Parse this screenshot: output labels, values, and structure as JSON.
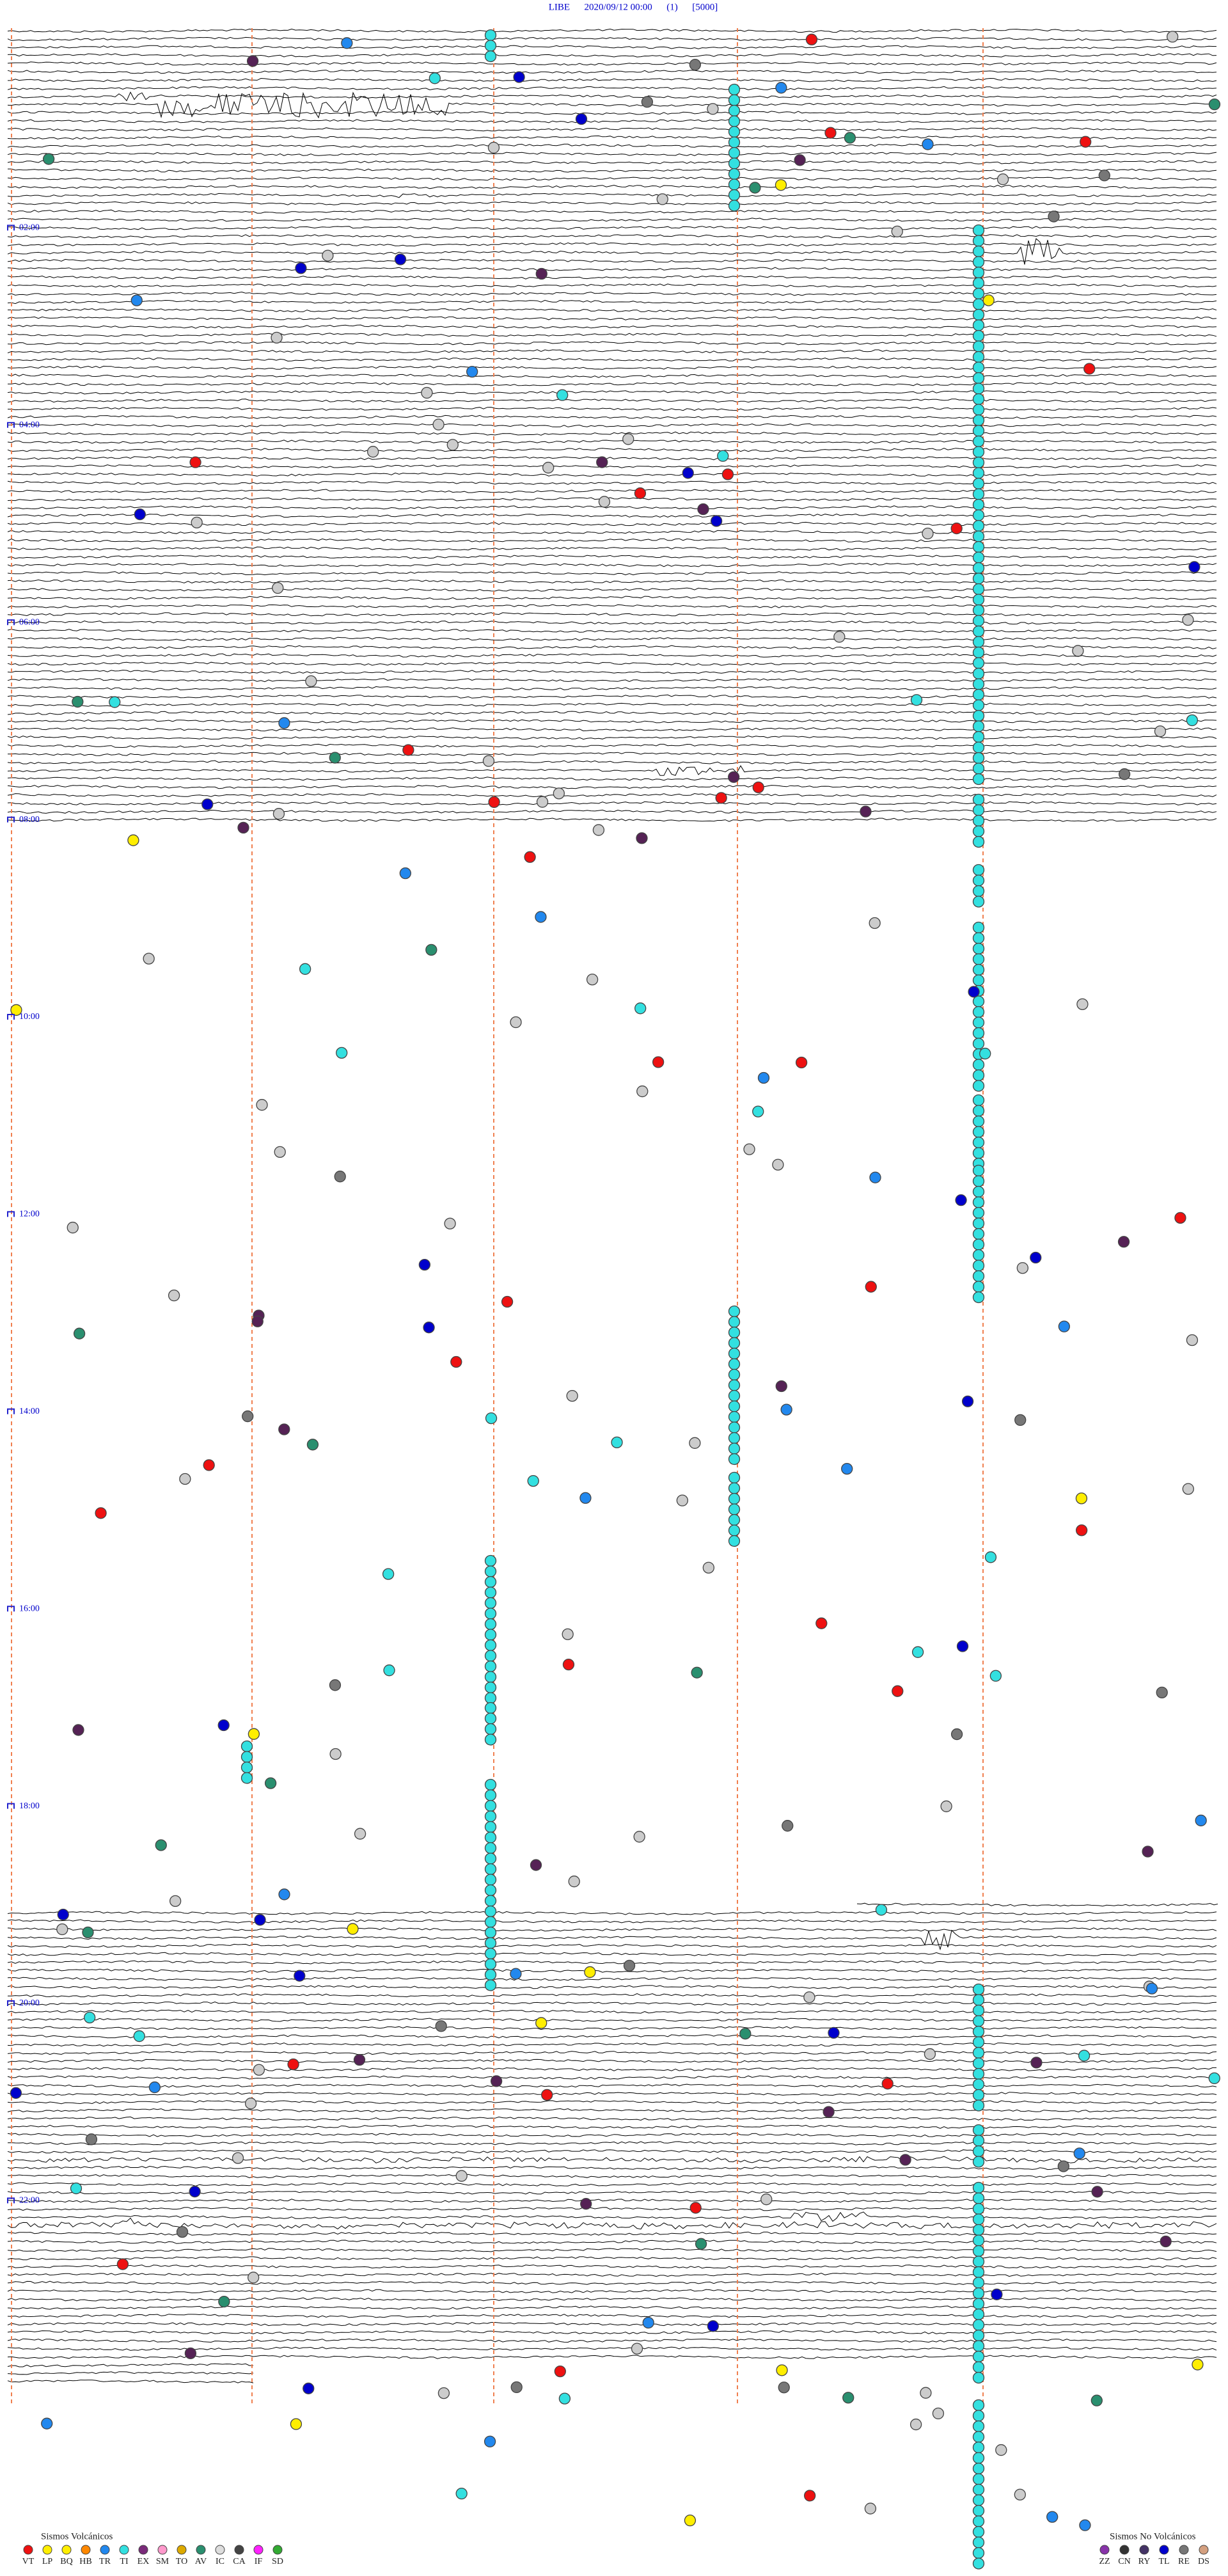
{
  "header": {
    "title": "LIBE      2020/09/12 00:00      (1)      [5000]"
  },
  "time_labels": [
    "02:00",
    "04:00",
    "06:00",
    "08:00",
    "10:00",
    "12:00",
    "14:00",
    "16:00",
    "18:00",
    "20:00",
    "22:00"
  ],
  "legend": {
    "volcanic": {
      "title": "Sismos Volcánicos",
      "codes": [
        "VT",
        "LP",
        "BQ",
        "HB",
        "TR",
        "TI",
        "EX",
        "SM",
        "TO",
        "AV",
        "IC",
        "CA",
        "IF",
        "SD"
      ]
    },
    "non_volcanic": {
      "title": "Sismos No Volcánicos",
      "codes": [
        "ZZ",
        "CN",
        "RY",
        "TL",
        "RE",
        "DS"
      ]
    }
  }
}
